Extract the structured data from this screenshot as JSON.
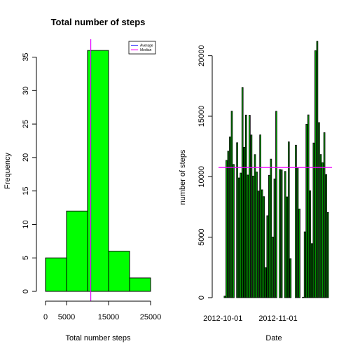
{
  "chart_data": [
    {
      "type": "bar",
      "subtype": "histogram",
      "title": "Total number of steps",
      "xlabel": "Total number steps",
      "ylabel": "Frequency",
      "bins": [
        [
          0,
          5000
        ],
        [
          5000,
          10000
        ],
        [
          10000,
          15000
        ],
        [
          15000,
          20000
        ],
        [
          20000,
          25000
        ]
      ],
      "values": [
        5,
        12,
        36,
        6,
        2
      ],
      "xticks": [
        0,
        5000,
        15000,
        25000
      ],
      "yticks": [
        0,
        5,
        10,
        15,
        20,
        25,
        30,
        35
      ],
      "xlim": [
        0,
        25000
      ],
      "ylim": [
        0,
        36
      ],
      "bar_color": "#00ff00",
      "lines": [
        {
          "name": "Average",
          "value": 10766,
          "color": "#0000ff"
        },
        {
          "name": "Median",
          "value": 10765,
          "color": "#ff00ff"
        }
      ],
      "legend": {
        "position": "top-right",
        "entries": [
          "Average",
          "Median"
        ]
      }
    },
    {
      "type": "bar",
      "title": "",
      "xlabel": "Date",
      "ylabel": "number of steps",
      "xtick_labels": [
        "2012-10-01",
        "2012-11-01"
      ],
      "yticks": [
        0,
        5000,
        10000,
        15000,
        20000
      ],
      "ylim": [
        0,
        21194
      ],
      "bar_color": "#00a000",
      "values": [
        0,
        126,
        11352,
        12116,
        13294,
        15420,
        11015,
        0,
        12811,
        9900,
        10304,
        17382,
        12426,
        15098,
        10139,
        15084,
        13452,
        10056,
        11829,
        10395,
        8821,
        13460,
        8918,
        8355,
        2492,
        6778,
        10119,
        11458,
        5018,
        9819,
        15414,
        0,
        10600,
        10571,
        0,
        10439,
        8334,
        12883,
        3219,
        0,
        0,
        12608,
        10765,
        7336,
        0,
        41,
        5441,
        14339,
        15110,
        8841,
        4472,
        12787,
        20427,
        21194,
        14478,
        11834,
        11162,
        13646,
        10183,
        7047,
        0
      ],
      "hlines": [
        {
          "name": "Average",
          "value": 10766,
          "color": "#0000ff"
        },
        {
          "name": "Median",
          "value": 10765,
          "color": "#ff00ff"
        }
      ]
    }
  ]
}
